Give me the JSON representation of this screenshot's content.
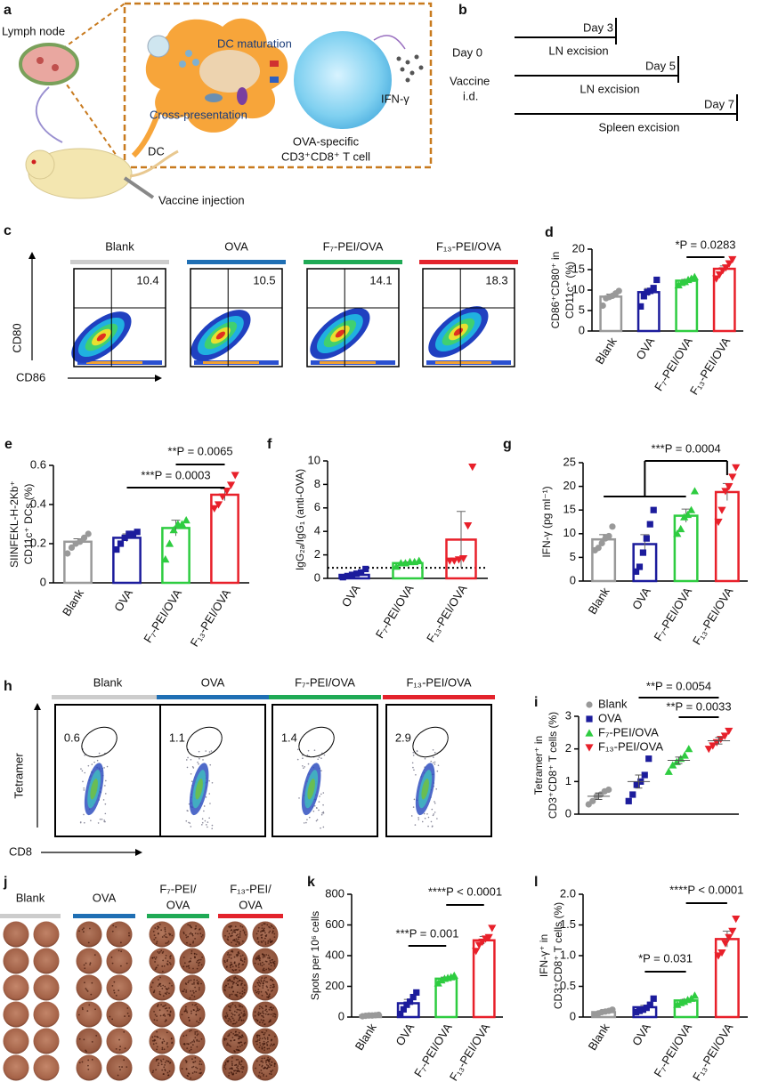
{
  "panel_a": {
    "letter": "a",
    "lymph_node": "Lymph node",
    "dc_maturation": "DC maturation",
    "cross_presentation": "Cross-presentation",
    "t_cell": [
      "OVA-specific",
      "CD3⁺CD8⁺ T cell"
    ],
    "ifn": "IFN-γ",
    "dc": "DC",
    "vaccine_injection": "Vaccine injection"
  },
  "panel_b": {
    "letter": "b",
    "day_0": "Day 0",
    "vaccine": [
      "Vaccine",
      "i.d."
    ],
    "timeline": [
      {
        "day": "Day 3",
        "label": "LN excision"
      },
      {
        "day": "Day 5",
        "label": "LN excision"
      },
      {
        "day": "Day 7",
        "label": "Spleen excision"
      }
    ]
  },
  "panel_c": {
    "letter": "c",
    "groups": [
      "Blank",
      "OVA",
      "F₇-PEI/OVA",
      "F₁₃-PEI/OVA"
    ],
    "colors": [
      "#cccccc",
      "#1f6fb4",
      "#1faa55",
      "#e3232c"
    ],
    "values": [
      10.4,
      10.5,
      14.1,
      18.3
    ],
    "xlabel": "CD86",
    "ylabel": "CD80"
  },
  "panel_h": {
    "letter": "h",
    "groups": [
      "Blank",
      "OVA",
      "F₇-PEI/OVA",
      "F₁₃-PEI/OVA"
    ],
    "colors": [
      "#cccccc",
      "#1f6fb4",
      "#1faa55",
      "#e3232c"
    ],
    "values": [
      0.6,
      1.1,
      1.4,
      2.9
    ],
    "xlabel": "CD8",
    "ylabel": "Tetramer"
  },
  "panel_j": {
    "letter": "j",
    "groups": [
      [
        "Blank"
      ],
      [
        "OVA"
      ],
      [
        "F₇-PEI/",
        "OVA"
      ],
      [
        "F₁₃-PEI/",
        "OVA"
      ]
    ],
    "colors": [
      "#cccccc",
      "#1f6fb4",
      "#1faa55",
      "#e3232c"
    ]
  },
  "chart_data": [
    {
      "type": "bar",
      "letter": "d",
      "ylabel": [
        "CD86⁺CD80⁺ in",
        "CD11c⁺ (%)"
      ],
      "categories": [
        "Blank",
        "OVA",
        "F₇-PEI/OVA",
        "F₁₃-PEI/OVA"
      ],
      "colors": [
        "#999999",
        "#1c1c9c",
        "#2ecc40",
        "#e8202a"
      ],
      "values": [
        8.4,
        9.5,
        12.3,
        15.2
      ],
      "errors": [
        0.6,
        0.9,
        0.3,
        0.7
      ],
      "points": [
        [
          6.2,
          8.0,
          8.3,
          8.6,
          9.2,
          9.8
        ],
        [
          6.0,
          8.5,
          9.5,
          9.8,
          10.5,
          12.5
        ],
        [
          11.2,
          11.8,
          12.0,
          12.5,
          12.8,
          13.2
        ],
        [
          12.8,
          13.8,
          14.8,
          15.5,
          16.5,
          17.5
        ]
      ],
      "ylim": [
        0,
        20
      ],
      "yticks": [
        0,
        5,
        10,
        15,
        20
      ],
      "annotations": [
        "*P = 0.0283"
      ]
    },
    {
      "type": "bar",
      "letter": "e",
      "ylabel": [
        "SIINFEKL-H-2Kb⁺",
        "CD11c⁺ DCs (%)"
      ],
      "categories": [
        "Blank",
        "OVA",
        "F₇-PEI/OVA",
        "F₁₃-PEI/OVA"
      ],
      "colors": [
        "#999999",
        "#1c1c9c",
        "#2ecc40",
        "#e8202a"
      ],
      "values": [
        0.21,
        0.23,
        0.28,
        0.45
      ],
      "errors": [
        0.015,
        0.02,
        0.04,
        0.03
      ],
      "points": [
        [
          0.15,
          0.18,
          0.2,
          0.21,
          0.23,
          0.25
        ],
        [
          0.17,
          0.2,
          0.23,
          0.25,
          0.25,
          0.26
        ],
        [
          0.12,
          0.2,
          0.27,
          0.3,
          0.3,
          0.32
        ],
        [
          0.38,
          0.4,
          0.44,
          0.47,
          0.5,
          0.55
        ]
      ],
      "ylim": [
        0,
        0.6
      ],
      "yticks": [
        0,
        0.2,
        0.4,
        0.6
      ],
      "annotations": [
        "**P = 0.0065",
        "***P = 0.0003"
      ]
    },
    {
      "type": "bar",
      "letter": "f",
      "ylabel": [
        "IgG₂ₐ/IgG₁ (anti-OVA)"
      ],
      "categories": [
        "OVA",
        "F₇-PEI/OVA",
        "F₁₃-PEI/OVA"
      ],
      "colors": [
        "#1c1c9c",
        "#2ecc40",
        "#e8202a"
      ],
      "values": [
        0.3,
        1.3,
        3.3
      ],
      "errors": [
        0.1,
        0.1,
        2.4
      ],
      "points": [
        [
          0.1,
          0.2,
          0.3,
          0.4,
          0.5,
          0.8
        ],
        [
          1.0,
          1.3,
          1.3,
          1.4,
          1.4,
          1.5
        ],
        [
          1.5,
          1.5,
          1.6,
          1.7,
          4.5,
          9.5
        ]
      ],
      "reference_line": 0.9,
      "ylim": [
        0,
        10
      ],
      "yticks": [
        0,
        2,
        4,
        6,
        8,
        10
      ],
      "annotations": []
    },
    {
      "type": "bar",
      "letter": "g",
      "ylabel": [
        "IFN-γ (pg ml⁻¹)"
      ],
      "categories": [
        "Blank",
        "OVA",
        "F₇-PEI/OVA",
        "F₁₃-PEI/OVA"
      ],
      "colors": [
        "#999999",
        "#1c1c9c",
        "#2ecc40",
        "#e8202a"
      ],
      "values": [
        8.8,
        7.8,
        13.8,
        18.8
      ],
      "errors": [
        1.0,
        2.0,
        1.4,
        1.8
      ],
      "points": [
        [
          6.5,
          7,
          8,
          9,
          9.5,
          11.5
        ],
        [
          2,
          3,
          6,
          9,
          12,
          15
        ],
        [
          10,
          11,
          13.5,
          14,
          15,
          19
        ],
        [
          12.5,
          15,
          19,
          20,
          22,
          24
        ]
      ],
      "ylim": [
        0,
        25
      ],
      "yticks": [
        0,
        5,
        10,
        15,
        20,
        25
      ],
      "annotations": [
        "***P = 0.0004"
      ]
    },
    {
      "type": "scatter",
      "letter": "i",
      "ylabel": [
        "Tetramer⁺ in",
        "CD3⁺CD8⁺ T cells (%)"
      ],
      "series": [
        {
          "name": "Blank",
          "color": "#999999",
          "mean": 0.55,
          "error": 0.1,
          "values": [
            0.3,
            0.4,
            0.55,
            0.6,
            0.7,
            0.75
          ]
        },
        {
          "name": "OVA",
          "color": "#1c1c9c",
          "mean": 1.0,
          "error": 0.2,
          "values": [
            0.4,
            0.6,
            0.9,
            1.0,
            1.2,
            1.7
          ]
        },
        {
          "name": "F₇-PEI/OVA",
          "color": "#2ecc40",
          "mean": 1.65,
          "error": 0.1,
          "values": [
            1.3,
            1.5,
            1.6,
            1.7,
            1.8,
            2.0
          ]
        },
        {
          "name": "F₁₃-PEI/OVA",
          "color": "#e8202a",
          "mean": 2.25,
          "error": 0.1,
          "values": [
            2.0,
            2.1,
            2.2,
            2.3,
            2.4,
            2.55
          ]
        }
      ],
      "ylim": [
        0,
        3
      ],
      "yticks": [
        0,
        1,
        2,
        3
      ],
      "legend": "upper left",
      "annotations": [
        "**P = 0.0054",
        "**P = 0.0033"
      ]
    },
    {
      "type": "bar",
      "letter": "k",
      "ylabel": [
        "Spots per 10⁶ cells"
      ],
      "categories": [
        "Blank",
        "OVA",
        "F₇-PEI/OVA",
        "F₁₃-PEI/OVA"
      ],
      "colors": [
        "#999999",
        "#1c1c9c",
        "#2ecc40",
        "#e8202a"
      ],
      "values": [
        10,
        90,
        250,
        500
      ],
      "errors": [
        3,
        25,
        10,
        25
      ],
      "points": [
        [
          5,
          8,
          10,
          10,
          12,
          15
        ],
        [
          20,
          50,
          80,
          100,
          130,
          160
        ],
        [
          220,
          240,
          250,
          255,
          260,
          270
        ],
        [
          430,
          470,
          490,
          510,
          520,
          580
        ]
      ],
      "ylim": [
        0,
        800
      ],
      "yticks": [
        0,
        200,
        400,
        600,
        800
      ],
      "annotations": [
        "****P < 0.0001",
        "***P = 0.001"
      ]
    },
    {
      "type": "bar",
      "letter": "l",
      "ylabel": [
        "IFN-γ⁺ in",
        "CD3⁺CD8⁺ T cells (%)"
      ],
      "categories": [
        "Blank",
        "OVA",
        "F₇-PEI/OVA",
        "F₁₃-PEI/OVA"
      ],
      "colors": [
        "#999999",
        "#1c1c9c",
        "#2ecc40",
        "#e8202a"
      ],
      "values": [
        0.08,
        0.16,
        0.27,
        1.27
      ],
      "errors": [
        0.01,
        0.03,
        0.02,
        0.13
      ],
      "points": [
        [
          0.04,
          0.06,
          0.08,
          0.09,
          0.1,
          0.12
        ],
        [
          0.08,
          0.1,
          0.12,
          0.15,
          0.2,
          0.3
        ],
        [
          0.2,
          0.23,
          0.25,
          0.28,
          0.3,
          0.35
        ],
        [
          1.0,
          1.05,
          1.2,
          1.3,
          1.4,
          1.6
        ]
      ],
      "ylim": [
        0,
        2
      ],
      "yticks": [
        0,
        0.5,
        {
          "value": 1,
          "label": "1.0"
        },
        1.5,
        {
          "value": 2,
          "label": "2.0"
        }
      ],
      "annotations": [
        "****P < 0.0001",
        "*P = 0.031"
      ]
    }
  ]
}
